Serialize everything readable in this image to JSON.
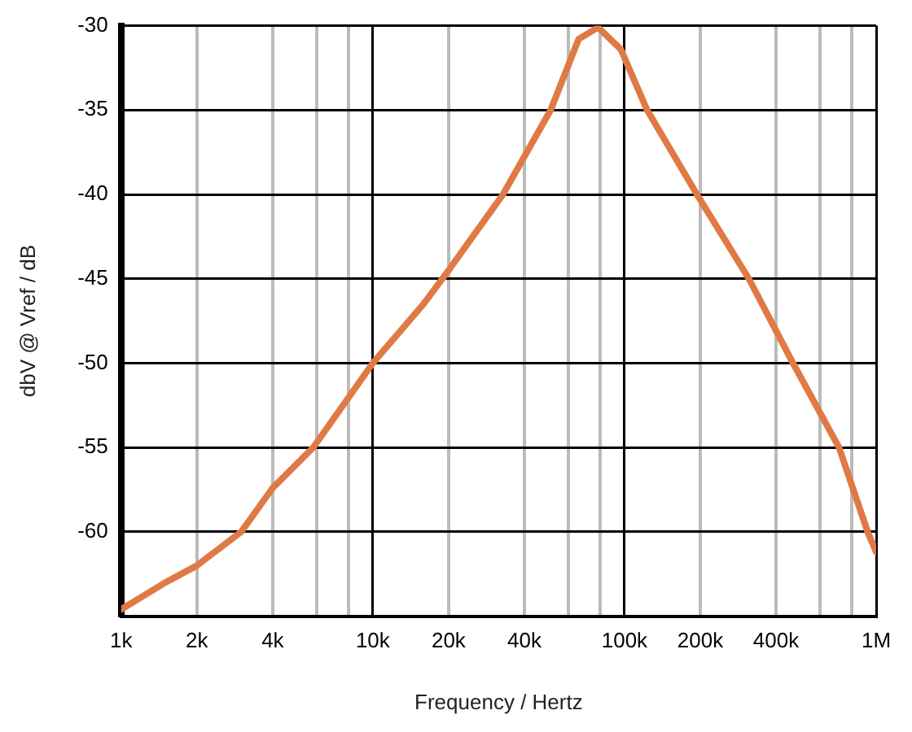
{
  "chart_data": {
    "type": "line",
    "xlabel": "Frequency / Hertz",
    "ylabel": "dbV @ Vref / dB",
    "x": [
      1000,
      1500,
      2000,
      3000,
      4000,
      5800,
      10000,
      15900,
      20000,
      32900,
      50900,
      65700,
      78500,
      96700,
      123000,
      194000,
      312000,
      467000,
      712000,
      925000,
      1000000
    ],
    "series": [
      {
        "color": "#e07a45",
        "values": [
          -64.6,
          -63.0,
          -62.0,
          -60,
          -57.4,
          -55,
          -50,
          -46.5,
          -44.5,
          -40,
          -35,
          -30.8,
          -30.1,
          -31.4,
          -35,
          -40,
          -45,
          -50,
          -55,
          -60,
          -61.2
        ]
      }
    ],
    "log": "x",
    "xlim": [
      1000,
      1000000
    ],
    "ylim": [
      -65,
      -30
    ],
    "xticks": [
      {
        "value": 1000,
        "label": "1k"
      },
      {
        "value": 2000,
        "label": "2k"
      },
      {
        "value": 4000,
        "label": "4k"
      },
      {
        "value": 6000,
        "label": null
      },
      {
        "value": 8000,
        "label": null
      },
      {
        "value": 10000,
        "label": "10k"
      },
      {
        "value": 20000,
        "label": "20k"
      },
      {
        "value": 40000,
        "label": "40k"
      },
      {
        "value": 60000,
        "label": null
      },
      {
        "value": 80000,
        "label": null
      },
      {
        "value": 100000,
        "label": "100k"
      },
      {
        "value": 200000,
        "label": "200k"
      },
      {
        "value": 400000,
        "label": "400k"
      },
      {
        "value": 600000,
        "label": null
      },
      {
        "value": 800000,
        "label": null
      },
      {
        "value": 1000000,
        "label": "1M"
      }
    ],
    "yticks": [
      -30,
      -35,
      -40,
      -45,
      -50,
      -55,
      -60
    ],
    "grid": true,
    "marker": "none",
    "line_style": "solid"
  }
}
